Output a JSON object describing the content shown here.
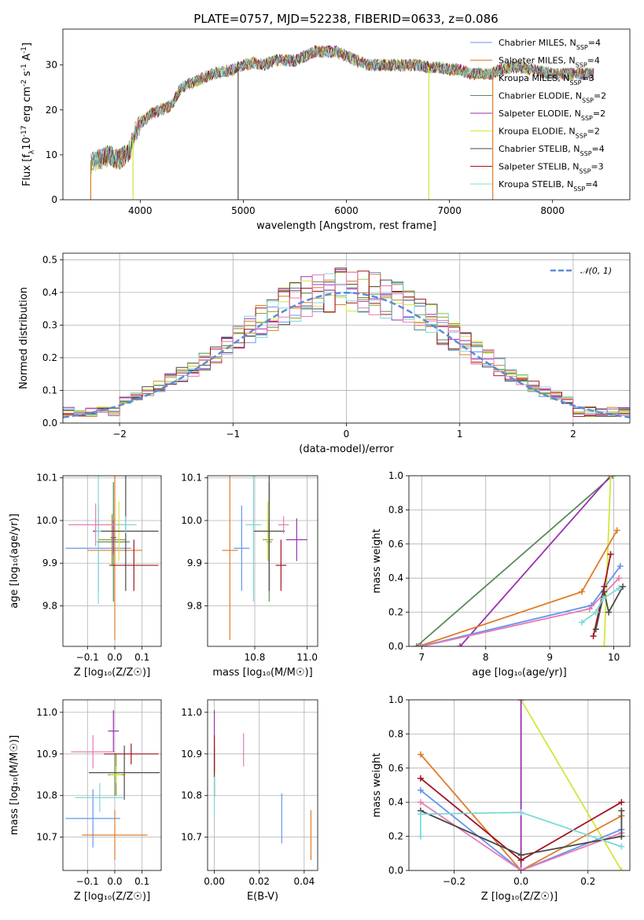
{
  "title": "PLATE=0757, MJD=52238, FIBERID=0633, z=0.086",
  "colors": {
    "c0": "#6495ed",
    "c1": "#e07b28",
    "c2": "#9b9b1e",
    "c3": "#5a8a5a",
    "c4": "#9b30b0",
    "c5": "#d4e63a",
    "c6": "#4a4a4a",
    "c7": "#a0141e",
    "c8": "#7fd8d8",
    "c9": "#e87ab4",
    "dash": "#5b8bd9"
  },
  "chart_data": [
    {
      "id": "spectrum",
      "type": "line",
      "xlabel": "wavelength [Angstrom, rest frame]",
      "ylabel_parts": [
        "Flux [f",
        "λ",
        "10",
        "-17",
        " erg cm",
        "-2",
        " s",
        "-1",
        " A",
        "-1",
        "]"
      ],
      "xlim": [
        3250,
        8750
      ],
      "ylim": [
        0,
        38
      ],
      "xticks": [
        4000,
        5000,
        6000,
        7000,
        8000
      ],
      "yticks": [
        0,
        10,
        20,
        30
      ],
      "legend_position": "top-right",
      "series": [
        {
          "name": "Chabrier MILES, N",
          "sub": "SSP",
          "suffix": "=4",
          "color": "c0"
        },
        {
          "name": "Salpeter MILES, N",
          "sub": "SSP",
          "suffix": "=4",
          "color": "c1"
        },
        {
          "name": "Kroupa MILES, N",
          "sub": "SSP",
          "suffix": "=3",
          "color": "c2"
        },
        {
          "name": "Chabrier ELODIE, N",
          "sub": "SSP",
          "suffix": "=2",
          "color": "c3"
        },
        {
          "name": "Salpeter ELODIE, N",
          "sub": "SSP",
          "suffix": "=2",
          "color": "c4"
        },
        {
          "name": "Kroupa ELODIE, N",
          "sub": "SSP",
          "suffix": "=2",
          "color": "c5"
        },
        {
          "name": "Chabrier STELIB, N",
          "sub": "SSP",
          "suffix": "=4",
          "color": "c6"
        },
        {
          "name": "Salpeter STELIB, N",
          "sub": "SSP",
          "suffix": "=3",
          "color": "c7"
        },
        {
          "name": "Kroupa STELIB, N",
          "sub": "SSP",
          "suffix": "=4",
          "color": "c8"
        }
      ],
      "continuum": [
        [
          3520,
          8
        ],
        [
          3600,
          9
        ],
        [
          3700,
          10
        ],
        [
          3800,
          9
        ],
        [
          3900,
          11
        ],
        [
          3950,
          15
        ],
        [
          4000,
          17
        ],
        [
          4100,
          19
        ],
        [
          4200,
          20
        ],
        [
          4300,
          21
        ],
        [
          4400,
          25
        ],
        [
          4500,
          26
        ],
        [
          4600,
          27
        ],
        [
          4700,
          28
        ],
        [
          4800,
          28.5
        ],
        [
          4900,
          29
        ],
        [
          5000,
          30
        ],
        [
          5100,
          30.5
        ],
        [
          5200,
          30
        ],
        [
          5300,
          31
        ],
        [
          5400,
          31
        ],
        [
          5500,
          31
        ],
        [
          5600,
          32
        ],
        [
          5700,
          33
        ],
        [
          5800,
          33
        ],
        [
          5900,
          33
        ],
        [
          6000,
          32
        ],
        [
          6100,
          31
        ],
        [
          6200,
          30
        ],
        [
          6300,
          30
        ],
        [
          6400,
          30
        ],
        [
          6500,
          30
        ],
        [
          6600,
          30
        ],
        [
          6700,
          30
        ],
        [
          6800,
          29.5
        ],
        [
          6900,
          29.5
        ],
        [
          7000,
          29
        ],
        [
          7100,
          29
        ],
        [
          7200,
          28
        ],
        [
          7300,
          28
        ],
        [
          7400,
          28
        ],
        [
          7500,
          29
        ],
        [
          7600,
          29.5
        ],
        [
          7700,
          29.5
        ],
        [
          7800,
          29
        ],
        [
          7900,
          28.5
        ],
        [
          8000,
          28
        ],
        [
          8100,
          28
        ],
        [
          8200,
          28
        ],
        [
          8300,
          28
        ],
        [
          8400,
          28
        ]
      ],
      "dropouts": [
        {
          "x": 3520,
          "color": "c1"
        },
        {
          "x": 3930,
          "color": "c5"
        },
        {
          "x": 4950,
          "color": "c6"
        },
        {
          "x": 6800,
          "color": "c5"
        },
        {
          "x": 7420,
          "color": "c1"
        }
      ]
    },
    {
      "id": "residuals",
      "type": "histogram",
      "xlabel": "(data-model)/error",
      "ylabel": "Normed distribution",
      "xlim": [
        -2.5,
        2.5
      ],
      "ylim": [
        0,
        0.52
      ],
      "xticks": [
        -2,
        -1,
        0,
        1,
        2
      ],
      "xtick_labels": [
        "−2",
        "−1",
        "0",
        "1",
        "2"
      ],
      "yticks": [
        0,
        0.1,
        0.2,
        0.3,
        0.4,
        0.5
      ],
      "ytick_labels": [
        "0.0",
        "0.1",
        "0.2",
        "0.3",
        "0.4",
        "0.5"
      ],
      "bin_width": 0.1,
      "bin_start": -2.5,
      "gaussian_label": "𝒩(0, 1)",
      "legend_position": "top-right"
    },
    {
      "id": "z-age",
      "type": "errorbar",
      "xlabel": "Z [log₁₀(Z/Z☉)]",
      "ylabel": "age  [log₁₀(age/yr)]",
      "xlim": [
        -0.19,
        0.17
      ],
      "ylim": [
        9.705,
        10.105
      ],
      "xticks": [
        -0.1,
        0.0,
        0.1
      ],
      "xtick_labels": [
        "−0.1",
        "0.0",
        "0.1"
      ],
      "yticks": [
        9.8,
        9.9,
        10.0,
        10.1
      ],
      "ytick_labels": [
        "9.8",
        "9.9",
        "10.0",
        "10.1"
      ],
      "points": [
        {
          "x": -0.06,
          "y": 9.935,
          "xerr": 0.12,
          "yerr": 0.1,
          "color": "c0"
        },
        {
          "x": 0.0,
          "y": 9.93,
          "xerr": 0.1,
          "yerr": 0.21,
          "color": "c1"
        },
        {
          "x": -0.01,
          "y": 9.955,
          "xerr": 0.05,
          "yerr": 0.06,
          "color": "c2"
        },
        {
          "x": -0.005,
          "y": 9.95,
          "xerr": 0.06,
          "yerr": 0.14,
          "color": "c3"
        },
        {
          "x": -0.005,
          "y": 9.96,
          "xerr": 0.01,
          "yerr": 0.04,
          "color": "c4"
        },
        {
          "x": 0.015,
          "y": 9.975,
          "xerr": 0.02,
          "yerr": 0.07,
          "color": "c5"
        },
        {
          "x": 0.04,
          "y": 9.975,
          "xerr": 0.12,
          "yerr": 0.14,
          "color": "c6"
        },
        {
          "x": 0.07,
          "y": 9.895,
          "xerr": 0.09,
          "yerr": 0.06,
          "color": "c7"
        },
        {
          "x": -0.06,
          "y": 9.975,
          "xerr": 0.01,
          "yerr": 0.17,
          "color": "c8"
        },
        {
          "x": -0.07,
          "y": 9.99,
          "xerr": 0.1,
          "yerr": 0.05,
          "color": "c9"
        },
        {
          "x": 0.04,
          "y": 9.99,
          "xerr": 0.04,
          "yerr": 0.02,
          "color": "c8"
        }
      ]
    },
    {
      "id": "mass-age",
      "type": "errorbar",
      "xlabel": "mass [log₁₀(M/M☉)]",
      "ylabel": "",
      "xlim": [
        10.62,
        11.04
      ],
      "ylim": [
        9.705,
        10.105
      ],
      "xticks": [
        10.8,
        11.0
      ],
      "xtick_labels": [
        "10.8",
        "11.0"
      ],
      "yticks": [
        9.8,
        9.9,
        10.0,
        10.1
      ],
      "ytick_labels": [
        "9.8",
        "9.9",
        "10.0",
        "10.1"
      ],
      "points": [
        {
          "x": 10.75,
          "y": 9.935,
          "xerr": 0.03,
          "yerr": 0.1,
          "color": "c0"
        },
        {
          "x": 10.705,
          "y": 9.93,
          "xerr": 0.03,
          "yerr": 0.21,
          "color": "c1"
        },
        {
          "x": 10.85,
          "y": 9.955,
          "xerr": 0.02,
          "yerr": 0.05,
          "color": "c2"
        },
        {
          "x": 10.855,
          "y": 9.95,
          "xerr": 0.01,
          "yerr": 0.14,
          "color": "c3"
        },
        {
          "x": 10.96,
          "y": 9.955,
          "xerr": 0.04,
          "yerr": 0.05,
          "color": "c4"
        },
        {
          "x": 10.85,
          "y": 9.975,
          "xerr": 0.01,
          "yerr": 0.07,
          "color": "c5"
        },
        {
          "x": 10.855,
          "y": 9.975,
          "xerr": 0.06,
          "yerr": 0.14,
          "color": "c6"
        },
        {
          "x": 10.9,
          "y": 9.895,
          "xerr": 0.02,
          "yerr": 0.06,
          "color": "c7"
        },
        {
          "x": 10.795,
          "y": 9.99,
          "xerr": 0.03,
          "yerr": 0.18,
          "color": "c8"
        },
        {
          "x": 10.91,
          "y": 9.99,
          "xerr": 0.02,
          "yerr": 0.02,
          "color": "c9"
        }
      ]
    },
    {
      "id": "age-weight",
      "type": "line",
      "xlabel": "age  [log₁₀(age/yr)]",
      "ylabel": "mass weight",
      "xlim": [
        6.8,
        10.25
      ],
      "ylim": [
        0,
        1.0
      ],
      "xticks": [
        7,
        8,
        9,
        10
      ],
      "yticks": [
        0,
        0.2,
        0.4,
        0.6,
        0.8,
        1.0
      ],
      "ytick_labels": [
        "0.0",
        "0.2",
        "0.4",
        "0.6",
        "0.8",
        "1.0"
      ],
      "series": [
        {
          "color": "c3",
          "points": [
            [
              6.92,
              0
            ],
            [
              9.98,
              1.0
            ]
          ]
        },
        {
          "color": "c4",
          "points": [
            [
              7.6,
              0
            ],
            [
              9.95,
              1.0
            ]
          ]
        },
        {
          "color": "c5",
          "points": [
            [
              9.85,
              0
            ],
            [
              9.95,
              1.0
            ]
          ]
        },
        {
          "color": "c1",
          "points": [
            [
              6.95,
              0
            ],
            [
              9.5,
              0.32
            ],
            [
              10.05,
              0.68
            ]
          ]
        },
        {
          "color": "c0",
          "points": [
            [
              6.98,
              0
            ],
            [
              9.65,
              0.24
            ],
            [
              10.1,
              0.47
            ]
          ]
        },
        {
          "color": "c9",
          "points": [
            [
              7.0,
              0
            ],
            [
              9.62,
              0.22
            ],
            [
              10.08,
              0.4
            ]
          ]
        },
        {
          "color": "c7",
          "points": [
            [
              9.68,
              0.06
            ],
            [
              9.85,
              0.35
            ],
            [
              9.95,
              0.54
            ]
          ]
        },
        {
          "color": "c6",
          "points": [
            [
              9.72,
              0.1
            ],
            [
              9.85,
              0.32
            ],
            [
              9.92,
              0.2
            ],
            [
              10.14,
              0.35
            ]
          ]
        },
        {
          "color": "c8",
          "points": [
            [
              9.5,
              0.14
            ],
            [
              9.72,
              0.2
            ],
            [
              9.83,
              0.28
            ],
            [
              10.08,
              0.34
            ]
          ]
        }
      ]
    },
    {
      "id": "z-mass",
      "type": "errorbar",
      "xlabel": "Z [log₁₀(Z/Z☉)]",
      "ylabel": "mass [log₁₀(M/M☉)]",
      "xlim": [
        -0.19,
        0.17
      ],
      "ylim": [
        10.62,
        11.03
      ],
      "xticks": [
        -0.1,
        0.0,
        0.1
      ],
      "xtick_labels": [
        "−0.1",
        "0.0",
        "0.1"
      ],
      "yticks": [
        10.7,
        10.8,
        10.9,
        11.0
      ],
      "ytick_labels": [
        "10.7",
        "10.8",
        "10.9",
        "11.0"
      ],
      "points": [
        {
          "x": -0.08,
          "y": 10.745,
          "xerr": 0.1,
          "yerr": 0.07,
          "color": "c0"
        },
        {
          "x": 0.0,
          "y": 10.705,
          "xerr": 0.12,
          "yerr": 0.06,
          "color": "c1"
        },
        {
          "x": 0.005,
          "y": 10.85,
          "xerr": 0.03,
          "yerr": 0.05,
          "color": "c2"
        },
        {
          "x": 0.0,
          "y": 10.85,
          "xerr": 0.01,
          "yerr": 0.05,
          "color": "c3"
        },
        {
          "x": -0.005,
          "y": 10.955,
          "xerr": 0.02,
          "yerr": 0.05,
          "color": "c4"
        },
        {
          "x": 0.005,
          "y": 10.85,
          "xerr": 0.02,
          "yerr": 0.02,
          "color": "c5"
        },
        {
          "x": 0.035,
          "y": 10.855,
          "xerr": 0.13,
          "yerr": 0.065,
          "color": "c6"
        },
        {
          "x": 0.06,
          "y": 10.9,
          "xerr": 0.1,
          "yerr": 0.025,
          "color": "c7"
        },
        {
          "x": -0.055,
          "y": 10.795,
          "xerr": 0.09,
          "yerr": 0.035,
          "color": "c8"
        },
        {
          "x": -0.08,
          "y": 10.905,
          "xerr": 0.08,
          "yerr": 0.04,
          "color": "c9"
        }
      ]
    },
    {
      "id": "ebv-mass",
      "type": "errorbar",
      "xlabel": "E(B-V)",
      "ylabel": "",
      "xlim": [
        -0.003,
        0.046
      ],
      "ylim": [
        10.62,
        11.03
      ],
      "xticks": [
        0.0,
        0.02,
        0.04
      ],
      "xtick_labels": [
        "0.00",
        "0.02",
        "0.04"
      ],
      "yticks": [
        10.7,
        10.8,
        10.9,
        11.0
      ],
      "ytick_labels": [
        "10.7",
        "10.8",
        "10.9",
        "11.0"
      ],
      "points": [
        {
          "x": 0.03,
          "y": 10.745,
          "xerr": 0,
          "yerr": 0.06,
          "color": "c0"
        },
        {
          "x": 0.043,
          "y": 10.705,
          "xerr": 0,
          "yerr": 0.06,
          "color": "c1"
        },
        {
          "x": 0.0,
          "y": 10.85,
          "xerr": 0,
          "yerr": 0.05,
          "color": "c2"
        },
        {
          "x": 0.0,
          "y": 10.85,
          "xerr": 0,
          "yerr": 0.05,
          "color": "c3"
        },
        {
          "x": 0.0,
          "y": 10.955,
          "xerr": 0,
          "yerr": 0.05,
          "color": "c4"
        },
        {
          "x": 0.0,
          "y": 10.85,
          "xerr": 0,
          "yerr": 0.02,
          "color": "c5"
        },
        {
          "x": 0.0,
          "y": 10.855,
          "xerr": 0,
          "yerr": 0.06,
          "color": "c6"
        },
        {
          "x": 0.0,
          "y": 10.9,
          "xerr": 0,
          "yerr": 0.045,
          "color": "c7"
        },
        {
          "x": 0.0,
          "y": 10.795,
          "xerr": 0,
          "yerr": 0.05,
          "color": "c8"
        },
        {
          "x": 0.013,
          "y": 10.91,
          "xerr": 0,
          "yerr": 0.04,
          "color": "c9"
        }
      ]
    },
    {
      "id": "z-weight",
      "type": "line",
      "xlabel": "Z [log₁₀(Z/Z☉)]",
      "ylabel": "mass weight",
      "xlim": [
        -0.335,
        0.325
      ],
      "ylim": [
        0,
        1.0
      ],
      "xticks": [
        -0.2,
        0.0,
        0.2
      ],
      "xtick_labels": [
        "−0.2",
        "0.0",
        "0.2"
      ],
      "yticks": [
        0,
        0.2,
        0.4,
        0.6,
        0.8,
        1.0
      ],
      "ytick_labels": [
        "0.0",
        "0.2",
        "0.4",
        "0.6",
        "0.8",
        "1.0"
      ],
      "series": [
        {
          "color": "c5",
          "points": [
            [
              0.0,
              1.0
            ],
            [
              0.3,
              0.0
            ]
          ]
        },
        {
          "color": "c4",
          "points": [
            [
              0.0,
              1.0
            ],
            [
              0.0,
              0.0
            ]
          ]
        },
        {
          "color": "c1",
          "points": [
            [
              -0.3,
              0.68
            ],
            [
              0.0,
              0.0
            ],
            [
              0.3,
              0.32
            ]
          ]
        },
        {
          "color": "c7",
          "points": [
            [
              -0.3,
              0.54
            ],
            [
              0.0,
              0.06
            ],
            [
              0.3,
              0.4
            ]
          ]
        },
        {
          "color": "c0",
          "points": [
            [
              -0.3,
              0.47
            ],
            [
              0.0,
              0.0
            ],
            [
              0.3,
              0.24
            ]
          ]
        },
        {
          "color": "c9",
          "points": [
            [
              -0.3,
              0.4
            ],
            [
              0.0,
              0.0
            ],
            [
              0.3,
              0.22
            ]
          ]
        },
        {
          "color": "c6",
          "points": [
            [
              -0.3,
              0.35
            ],
            [
              0.0,
              0.09
            ],
            [
              0.3,
              0.2
            ]
          ]
        },
        {
          "color": "c8",
          "points": [
            [
              -0.3,
              0.2
            ],
            [
              -0.3,
              0.33
            ],
            [
              0.0,
              0.34
            ],
            [
              0.3,
              0.14
            ]
          ]
        },
        {
          "color": "c6",
          "points": [
            [
              0.3,
              0.2
            ],
            [
              0.3,
              0.35
            ]
          ]
        }
      ]
    }
  ]
}
